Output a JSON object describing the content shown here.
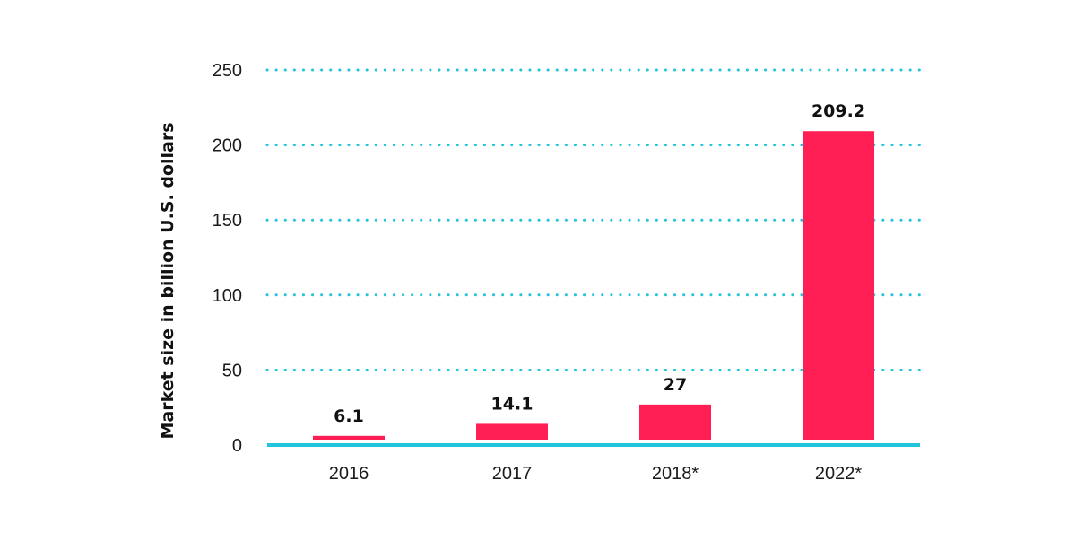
{
  "chart_data": {
    "type": "bar",
    "categories": [
      "2016",
      "2017",
      "2018*",
      "2022*"
    ],
    "values": [
      6.1,
      14.1,
      27,
      209.2
    ],
    "data_labels": [
      "6.1",
      "14.1",
      "27",
      "209.2"
    ],
    "title": "",
    "xlabel": "",
    "ylabel": "Market size in billion U.S. dollars",
    "ylim": [
      0,
      250
    ],
    "yticks": [
      0,
      50,
      100,
      150,
      200,
      250
    ],
    "grid": "dotted-horizontal",
    "legend": "none",
    "colors": {
      "bar": "#ff1f55",
      "grid": "#22c4dc",
      "axis": "#22c4dc"
    }
  }
}
